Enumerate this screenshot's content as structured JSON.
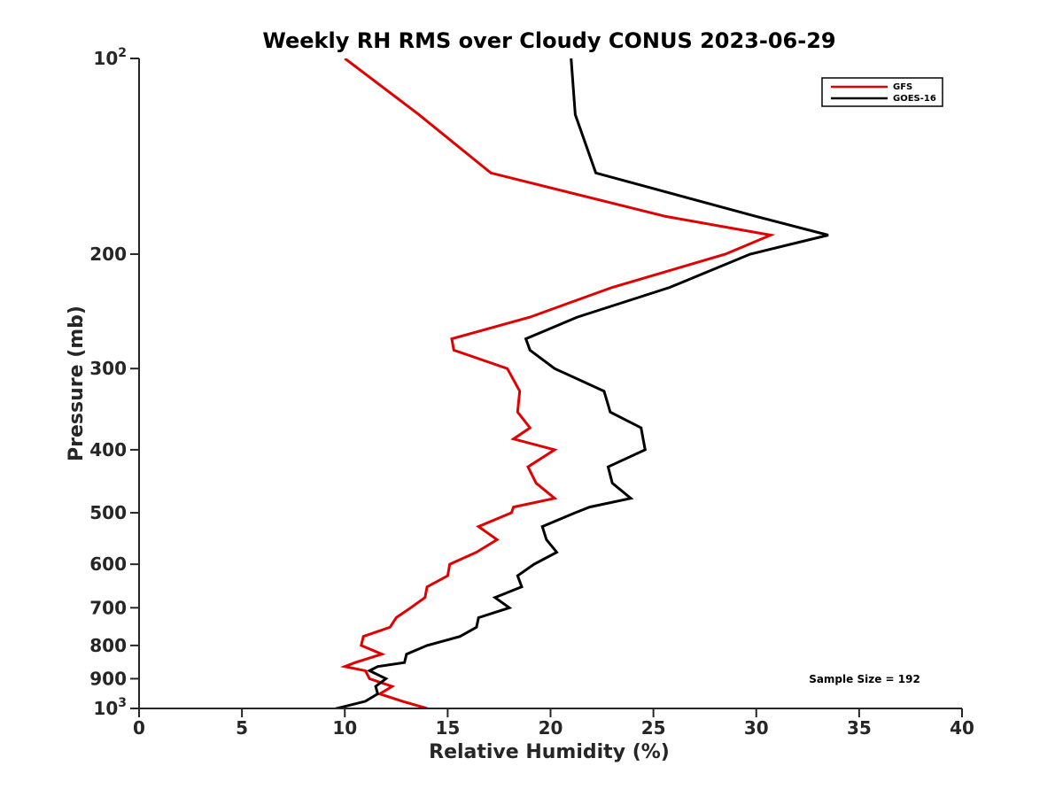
{
  "chart_data": {
    "type": "line",
    "title": "Weekly RH RMS over Cloudy CONUS 2023-06-29",
    "xlabel": "Relative Humidity (%)",
    "ylabel": "Pressure (mb)",
    "xlim": [
      0,
      40
    ],
    "ylim": [
      100,
      1000
    ],
    "y_scale": "log",
    "y_reversed": true,
    "grid": false,
    "legend_position": "top-right",
    "x_ticks": [
      0,
      5,
      10,
      15,
      20,
      25,
      30,
      35,
      40
    ],
    "x_tick_labels": [
      "0",
      "5",
      "10",
      "15",
      "20",
      "25",
      "30",
      "35",
      "40"
    ],
    "y_ticks": [
      100,
      200,
      300,
      400,
      500,
      600,
      700,
      800,
      900,
      1000
    ],
    "y_tick_labels": [
      {
        "base": "10",
        "exp": "2"
      },
      {
        "base": "200",
        "exp": ""
      },
      {
        "base": "300",
        "exp": ""
      },
      {
        "base": "400",
        "exp": ""
      },
      {
        "base": "500",
        "exp": ""
      },
      {
        "base": "600",
        "exp": ""
      },
      {
        "base": "700",
        "exp": ""
      },
      {
        "base": "800",
        "exp": ""
      },
      {
        "base": "900",
        "exp": ""
      },
      {
        "base": "10",
        "exp": "3"
      }
    ],
    "annotation": "Sample Size = 192",
    "series": [
      {
        "name": "GFS",
        "color": "#e00000",
        "points": [
          [
            10.0,
            100
          ],
          [
            13.6,
            122
          ],
          [
            17.1,
            150
          ],
          [
            25.6,
            175
          ],
          [
            30.7,
            187
          ],
          [
            28.5,
            200
          ],
          [
            23.0,
            225
          ],
          [
            19.0,
            250
          ],
          [
            15.2,
            270
          ],
          [
            15.3,
            281
          ],
          [
            17.9,
            300
          ],
          [
            18.5,
            325
          ],
          [
            18.4,
            350
          ],
          [
            19.0,
            370
          ],
          [
            18.2,
            385
          ],
          [
            20.2,
            400
          ],
          [
            18.9,
            425
          ],
          [
            19.3,
            450
          ],
          [
            20.2,
            475
          ],
          [
            18.2,
            490
          ],
          [
            18.1,
            500
          ],
          [
            16.5,
            525
          ],
          [
            17.4,
            550
          ],
          [
            16.4,
            575
          ],
          [
            15.1,
            600
          ],
          [
            15.0,
            625
          ],
          [
            14.0,
            650
          ],
          [
            13.9,
            675
          ],
          [
            13.2,
            700
          ],
          [
            12.5,
            725
          ],
          [
            12.2,
            750
          ],
          [
            10.9,
            775
          ],
          [
            10.8,
            800
          ],
          [
            11.8,
            825
          ],
          [
            10.5,
            850
          ],
          [
            10.0,
            862
          ],
          [
            11.0,
            875
          ],
          [
            11.2,
            900
          ],
          [
            12.3,
            925
          ],
          [
            11.7,
            950
          ],
          [
            12.8,
            975
          ],
          [
            14.0,
            1000
          ]
        ]
      },
      {
        "name": "GOES-16",
        "color": "#000000",
        "points": [
          [
            21.0,
            100
          ],
          [
            21.2,
            122
          ],
          [
            22.2,
            150
          ],
          [
            30.0,
            175
          ],
          [
            33.5,
            187
          ],
          [
            29.7,
            200
          ],
          [
            25.8,
            225
          ],
          [
            21.3,
            250
          ],
          [
            18.8,
            270
          ],
          [
            19.0,
            281
          ],
          [
            20.2,
            300
          ],
          [
            22.6,
            325
          ],
          [
            22.9,
            350
          ],
          [
            24.4,
            370
          ],
          [
            24.5,
            385
          ],
          [
            24.6,
            400
          ],
          [
            22.8,
            425
          ],
          [
            23.0,
            450
          ],
          [
            23.9,
            475
          ],
          [
            21.9,
            490
          ],
          [
            21.2,
            500
          ],
          [
            19.6,
            525
          ],
          [
            19.8,
            550
          ],
          [
            20.3,
            575
          ],
          [
            19.2,
            600
          ],
          [
            18.4,
            625
          ],
          [
            18.6,
            650
          ],
          [
            17.3,
            675
          ],
          [
            18.0,
            700
          ],
          [
            16.5,
            725
          ],
          [
            16.4,
            750
          ],
          [
            15.6,
            775
          ],
          [
            14.0,
            800
          ],
          [
            13.0,
            825
          ],
          [
            12.9,
            850
          ],
          [
            11.6,
            862
          ],
          [
            11.2,
            875
          ],
          [
            12.0,
            900
          ],
          [
            11.5,
            925
          ],
          [
            11.6,
            950
          ],
          [
            11.0,
            975
          ],
          [
            9.6,
            1000
          ],
          [
            8.6,
            1025
          ]
        ]
      }
    ]
  }
}
